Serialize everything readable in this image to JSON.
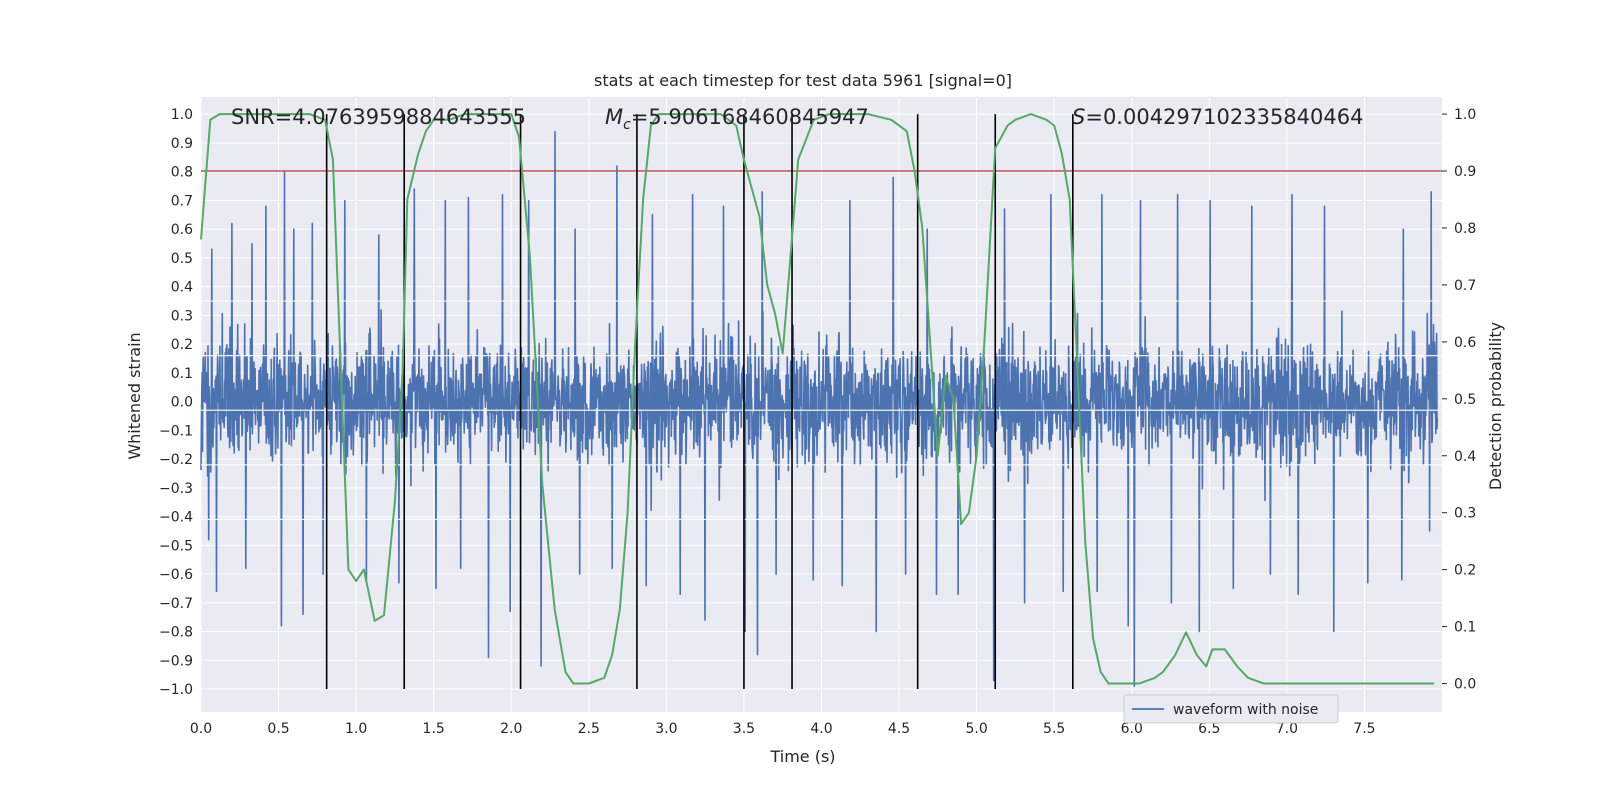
{
  "chart_data": {
    "type": "line",
    "title": "stats at each timestep for test data 5961 [signal=0]",
    "xlabel": "Time (s)",
    "ylabel_left": "Whitened strain",
    "ylabel_right": "Detection probability",
    "xlim": [
      0.0,
      8.0
    ],
    "ylim_left": [
      -1.08,
      1.06
    ],
    "ylim_right": [
      -0.05,
      1.03
    ],
    "x_ticks": [
      "0.0",
      "0.5",
      "1.0",
      "1.5",
      "2.0",
      "2.5",
      "3.0",
      "3.5",
      "4.0",
      "4.5",
      "5.0",
      "5.5",
      "6.0",
      "6.5",
      "7.0",
      "7.5"
    ],
    "y_ticks_left": [
      "1.0",
      "0.9",
      "0.8",
      "0.7",
      "0.6",
      "0.5",
      "0.4",
      "0.3",
      "0.2",
      "0.1",
      "0.0",
      "-0.1",
      "-0.2",
      "-0.3",
      "-0.4",
      "-0.5",
      "-0.6",
      "-0.7",
      "-0.8",
      "-0.9",
      "-1.0"
    ],
    "y_ticks_right": [
      "1.0",
      "0.9",
      "0.8",
      "0.7",
      "0.6",
      "0.5",
      "0.4",
      "0.3",
      "0.2",
      "0.1",
      "0.0"
    ],
    "annotations": {
      "snr": "SNR=4.0763959884643555",
      "mc_symbol": "M",
      "mc_subscript": "c",
      "mc_value": "=5.906168460845947",
      "s_symbol": "S",
      "s_value": "=0.004297102335840464"
    },
    "threshold": {
      "value": 0.9,
      "axis": "right",
      "color": "#c44e52"
    },
    "vertical_lines": [
      0.81,
      1.31,
      2.06,
      2.81,
      3.5,
      3.81,
      4.62,
      5.12,
      5.62
    ],
    "legend": {
      "label": "waveform with noise",
      "placement": "lower-right"
    },
    "series": [
      {
        "name": "waveform with noise",
        "axis": "left",
        "color": "#4c72b0",
        "description": "dense noise trace, core band approx -0.4 to 0.35, spikes to ~0.94 and ~-0.99",
        "spikes": [
          {
            "x": 0.07,
            "y": 0.53
          },
          {
            "x": 0.2,
            "y": 0.62
          },
          {
            "x": 0.33,
            "y": 0.55
          },
          {
            "x": 0.42,
            "y": 0.68
          },
          {
            "x": 0.54,
            "y": 0.8
          },
          {
            "x": 0.6,
            "y": 0.6
          },
          {
            "x": 0.72,
            "y": 0.62
          },
          {
            "x": 0.93,
            "y": 0.7
          },
          {
            "x": 1.15,
            "y": 0.58
          },
          {
            "x": 1.38,
            "y": 0.74
          },
          {
            "x": 1.58,
            "y": 0.7
          },
          {
            "x": 1.73,
            "y": 0.71
          },
          {
            "x": 1.95,
            "y": 0.72
          },
          {
            "x": 2.12,
            "y": 0.7
          },
          {
            "x": 2.29,
            "y": 0.94
          },
          {
            "x": 2.42,
            "y": 0.6
          },
          {
            "x": 2.69,
            "y": 0.82
          },
          {
            "x": 2.92,
            "y": 0.65
          },
          {
            "x": 3.18,
            "y": 0.72
          },
          {
            "x": 3.38,
            "y": 0.68
          },
          {
            "x": 3.63,
            "y": 0.73
          },
          {
            "x": 3.96,
            "y": 0.68
          },
          {
            "x": 4.2,
            "y": 0.7
          },
          {
            "x": 4.48,
            "y": 0.78
          },
          {
            "x": 4.7,
            "y": 0.6
          },
          {
            "x": 4.9,
            "y": 0.64
          },
          {
            "x": 5.2,
            "y": 0.67
          },
          {
            "x": 5.5,
            "y": 0.72
          },
          {
            "x": 5.83,
            "y": 0.72
          },
          {
            "x": 6.08,
            "y": 0.7
          },
          {
            "x": 6.32,
            "y": 0.72
          },
          {
            "x": 6.53,
            "y": 0.7
          },
          {
            "x": 6.8,
            "y": 0.68
          },
          {
            "x": 7.06,
            "y": 0.72
          },
          {
            "x": 7.27,
            "y": 0.68
          },
          {
            "x": 7.55,
            "y": 0.62
          },
          {
            "x": 7.78,
            "y": 0.6
          },
          {
            "x": 7.96,
            "y": 0.73
          },
          {
            "x": 0.05,
            "y": -0.48
          },
          {
            "x": 0.1,
            "y": -0.66
          },
          {
            "x": 0.29,
            "y": -0.58
          },
          {
            "x": 0.52,
            "y": -0.78
          },
          {
            "x": 0.66,
            "y": -0.74
          },
          {
            "x": 0.79,
            "y": -0.6
          },
          {
            "x": 1.07,
            "y": -0.62
          },
          {
            "x": 1.28,
            "y": -0.63
          },
          {
            "x": 1.52,
            "y": -0.65
          },
          {
            "x": 1.68,
            "y": -0.58
          },
          {
            "x": 1.86,
            "y": -0.89
          },
          {
            "x": 2.0,
            "y": -0.73
          },
          {
            "x": 2.2,
            "y": -0.92
          },
          {
            "x": 2.45,
            "y": -0.6
          },
          {
            "x": 2.66,
            "y": -0.58
          },
          {
            "x": 2.88,
            "y": -0.64
          },
          {
            "x": 3.1,
            "y": -0.67
          },
          {
            "x": 3.26,
            "y": -0.76
          },
          {
            "x": 3.52,
            "y": -0.8
          },
          {
            "x": 3.6,
            "y": -0.88
          },
          {
            "x": 3.72,
            "y": -0.6
          },
          {
            "x": 3.96,
            "y": -0.62
          },
          {
            "x": 4.15,
            "y": -0.64
          },
          {
            "x": 4.37,
            "y": -0.8
          },
          {
            "x": 4.56,
            "y": -0.6
          },
          {
            "x": 4.76,
            "y": -0.67
          },
          {
            "x": 4.9,
            "y": -0.67
          },
          {
            "x": 5.13,
            "y": -0.97
          },
          {
            "x": 5.33,
            "y": -0.7
          },
          {
            "x": 5.58,
            "y": -0.66
          },
          {
            "x": 5.8,
            "y": -0.66
          },
          {
            "x": 6.0,
            "y": -0.78
          },
          {
            "x": 6.04,
            "y": -0.99
          },
          {
            "x": 6.28,
            "y": -0.7
          },
          {
            "x": 6.46,
            "y": -0.8
          },
          {
            "x": 6.68,
            "y": -0.65
          },
          {
            "x": 6.92,
            "y": -0.6
          },
          {
            "x": 7.1,
            "y": -0.67
          },
          {
            "x": 7.33,
            "y": -0.8
          },
          {
            "x": 7.55,
            "y": -0.63
          },
          {
            "x": 7.77,
            "y": -0.62
          },
          {
            "x": 7.95,
            "y": -0.45
          }
        ]
      },
      {
        "name": "detection probability",
        "axis": "right",
        "color": "#55a868",
        "x": [
          0.0,
          0.06,
          0.12,
          0.25,
          0.5,
          0.7,
          0.8,
          0.85,
          0.95,
          1.0,
          1.05,
          1.12,
          1.18,
          1.25,
          1.3,
          1.33,
          1.4,
          1.45,
          1.5,
          1.6,
          1.7,
          1.8,
          1.9,
          2.0,
          2.05,
          2.12,
          2.2,
          2.28,
          2.35,
          2.4,
          2.5,
          2.6,
          2.65,
          2.7,
          2.75,
          2.8,
          2.85,
          2.9,
          2.95,
          3.05,
          3.2,
          3.35,
          3.45,
          3.5,
          3.55,
          3.6,
          3.65,
          3.7,
          3.75,
          3.8,
          3.85,
          3.95,
          4.05,
          4.15,
          4.3,
          4.45,
          4.55,
          4.6,
          4.65,
          4.7,
          4.75,
          4.8,
          4.85,
          4.9,
          4.95,
          5.0,
          5.05,
          5.12,
          5.2,
          5.25,
          5.35,
          5.45,
          5.5,
          5.55,
          5.6,
          5.65,
          5.7,
          5.75,
          5.8,
          5.85,
          5.92,
          6.05,
          6.15,
          6.2,
          6.28,
          6.35,
          6.42,
          6.48,
          6.52,
          6.6,
          6.68,
          6.75,
          6.85,
          6.95,
          7.1,
          7.3,
          7.5,
          7.7,
          7.85,
          7.95
        ],
        "y": [
          0.78,
          0.99,
          1.0,
          1.0,
          1.0,
          1.0,
          0.99,
          0.92,
          0.2,
          0.18,
          0.2,
          0.11,
          0.12,
          0.32,
          0.55,
          0.85,
          0.93,
          0.97,
          0.99,
          0.99,
          1.0,
          1.0,
          1.0,
          1.0,
          0.96,
          0.75,
          0.35,
          0.13,
          0.02,
          0.0,
          0.0,
          0.01,
          0.05,
          0.13,
          0.3,
          0.6,
          0.85,
          0.98,
          1.0,
          1.0,
          1.0,
          1.0,
          0.98,
          0.92,
          0.87,
          0.82,
          0.7,
          0.65,
          0.58,
          0.75,
          0.92,
          0.99,
          1.0,
          1.0,
          1.0,
          0.99,
          0.97,
          0.9,
          0.8,
          0.6,
          0.4,
          0.54,
          0.5,
          0.28,
          0.3,
          0.4,
          0.6,
          0.94,
          0.98,
          0.99,
          1.0,
          0.99,
          0.98,
          0.93,
          0.85,
          0.55,
          0.25,
          0.08,
          0.02,
          0.0,
          0.0,
          0.0,
          0.01,
          0.02,
          0.05,
          0.09,
          0.05,
          0.03,
          0.06,
          0.06,
          0.03,
          0.01,
          0.0,
          0.0,
          0.0,
          0.0,
          0.0,
          0.0,
          0.0,
          0.0
        ]
      }
    ]
  }
}
